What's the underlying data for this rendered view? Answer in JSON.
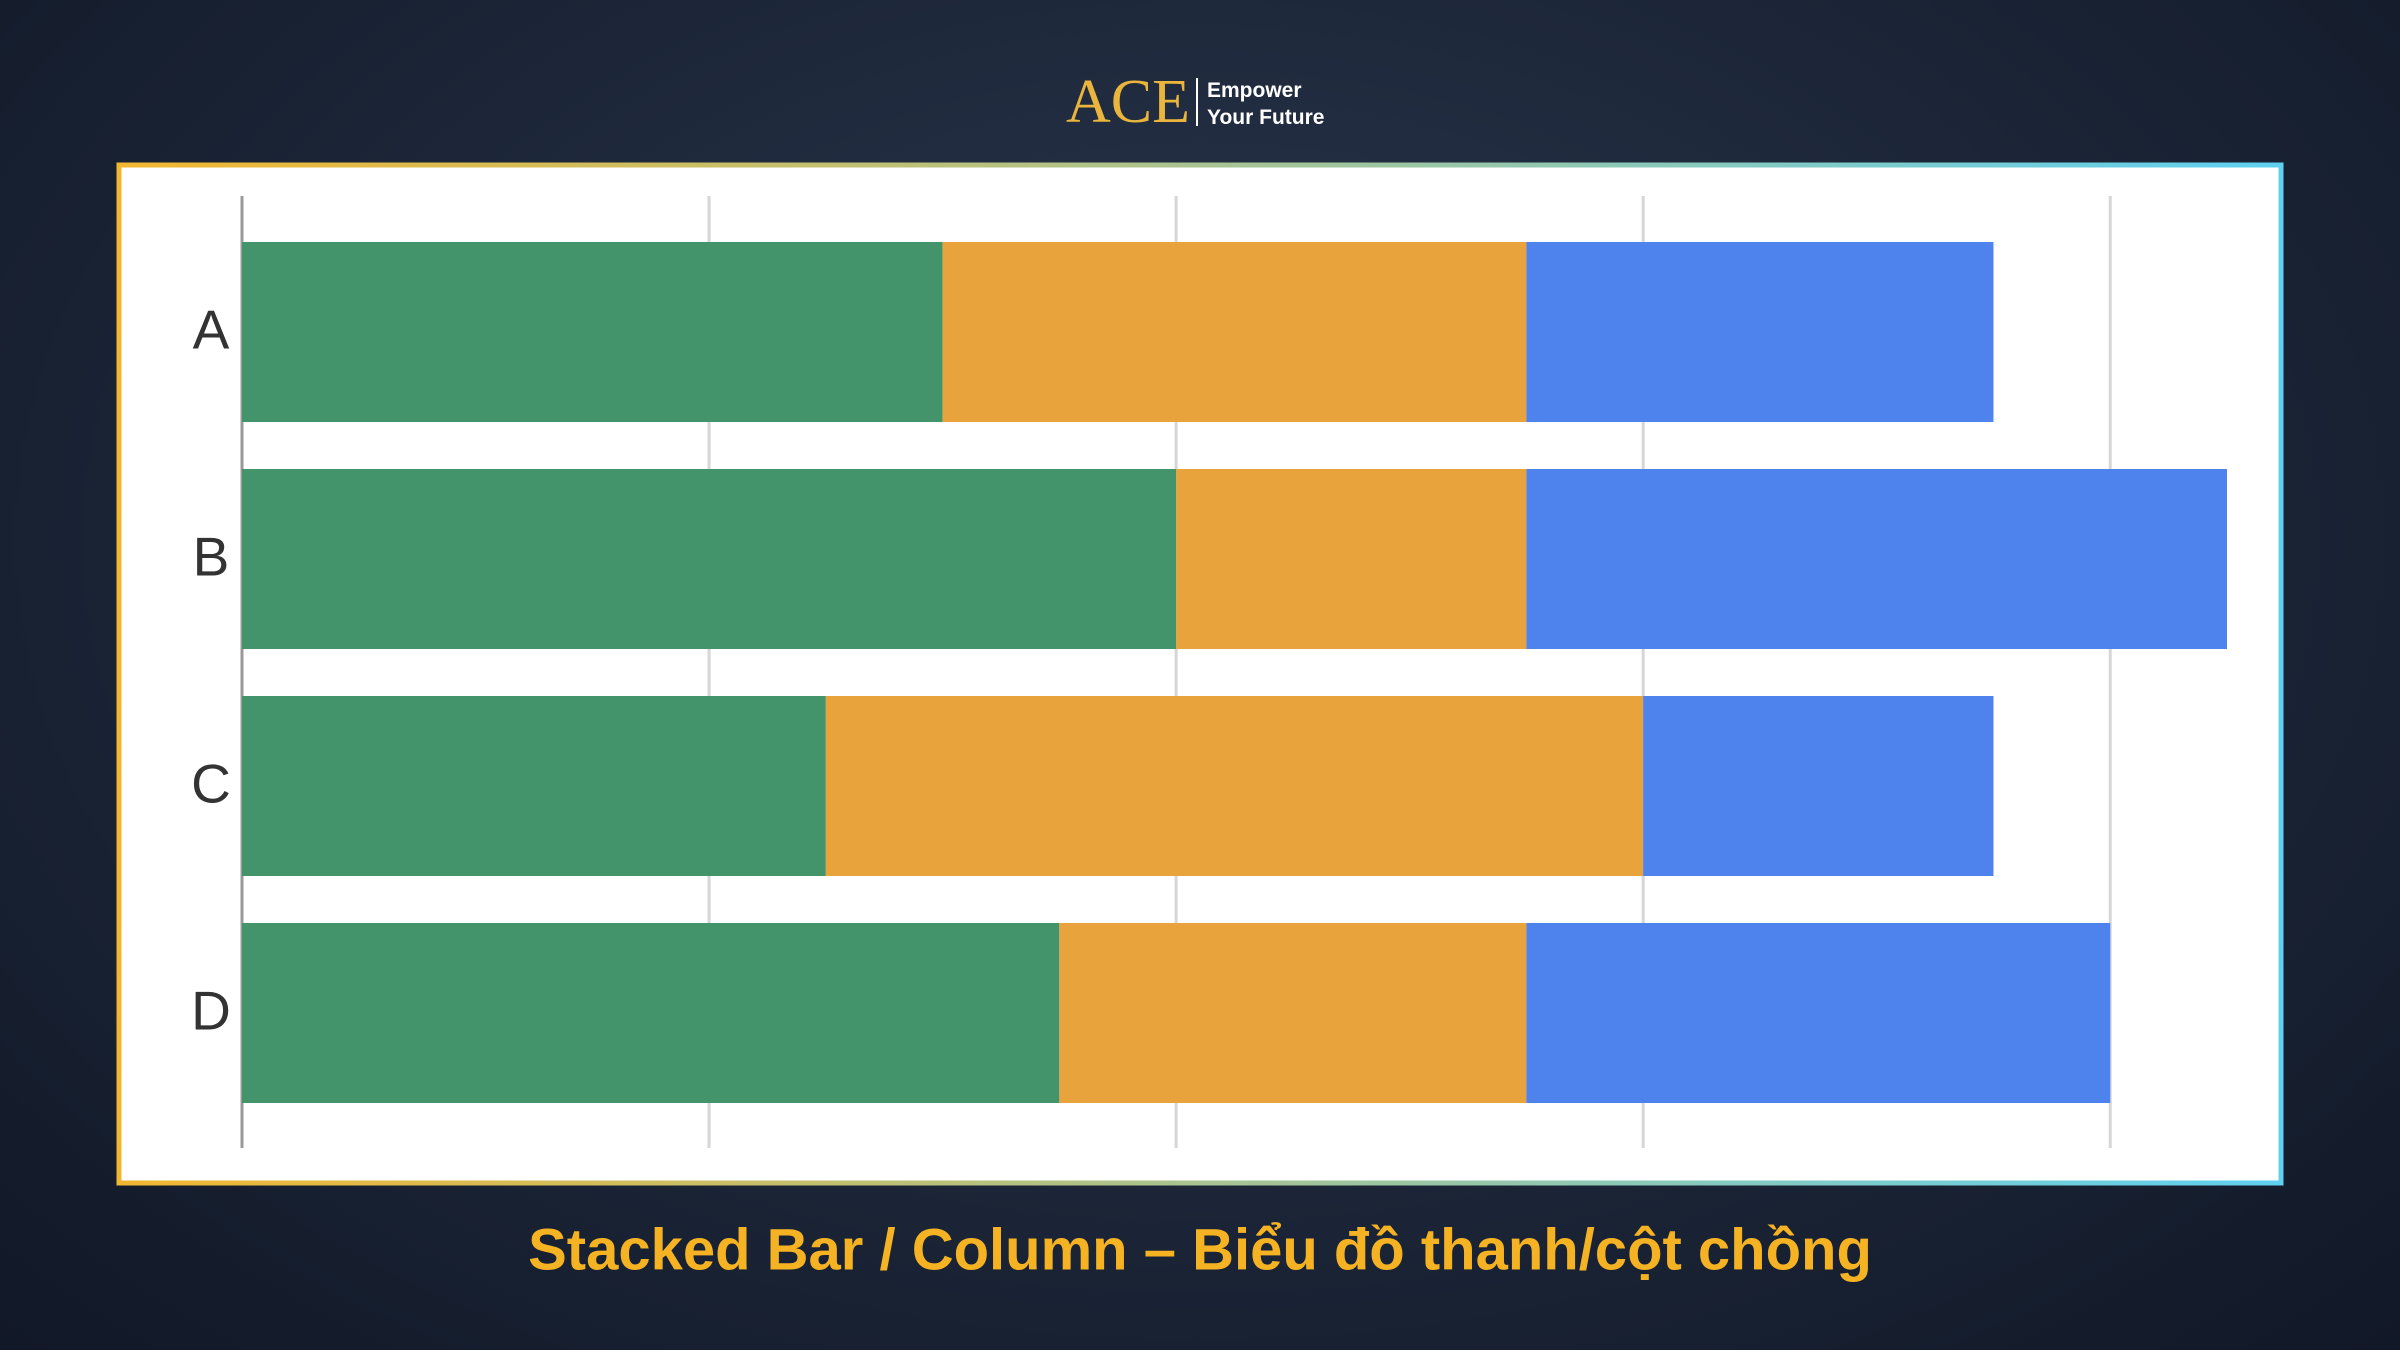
{
  "header": {
    "logo": "ACE",
    "tagline_line1": "Empower",
    "tagline_line2": "Your Future"
  },
  "chart_data": {
    "type": "bar",
    "orientation": "horizontal",
    "stacked": true,
    "categories": [
      "A",
      "B",
      "C",
      "D"
    ],
    "series": [
      {
        "color": "#43936b",
        "values": [
          6,
          8,
          5,
          7
        ]
      },
      {
        "color": "#e8a33d",
        "values": [
          5,
          3,
          7,
          4
        ]
      },
      {
        "color": "#4e82ec",
        "values": [
          4,
          6,
          3,
          5
        ]
      }
    ],
    "xlim": [
      0,
      17
    ],
    "xticks": [
      0,
      4,
      8,
      12,
      16
    ],
    "grid": true
  },
  "caption": "Stacked Bar / Column – Biểu đồ thanh/cột chồng"
}
